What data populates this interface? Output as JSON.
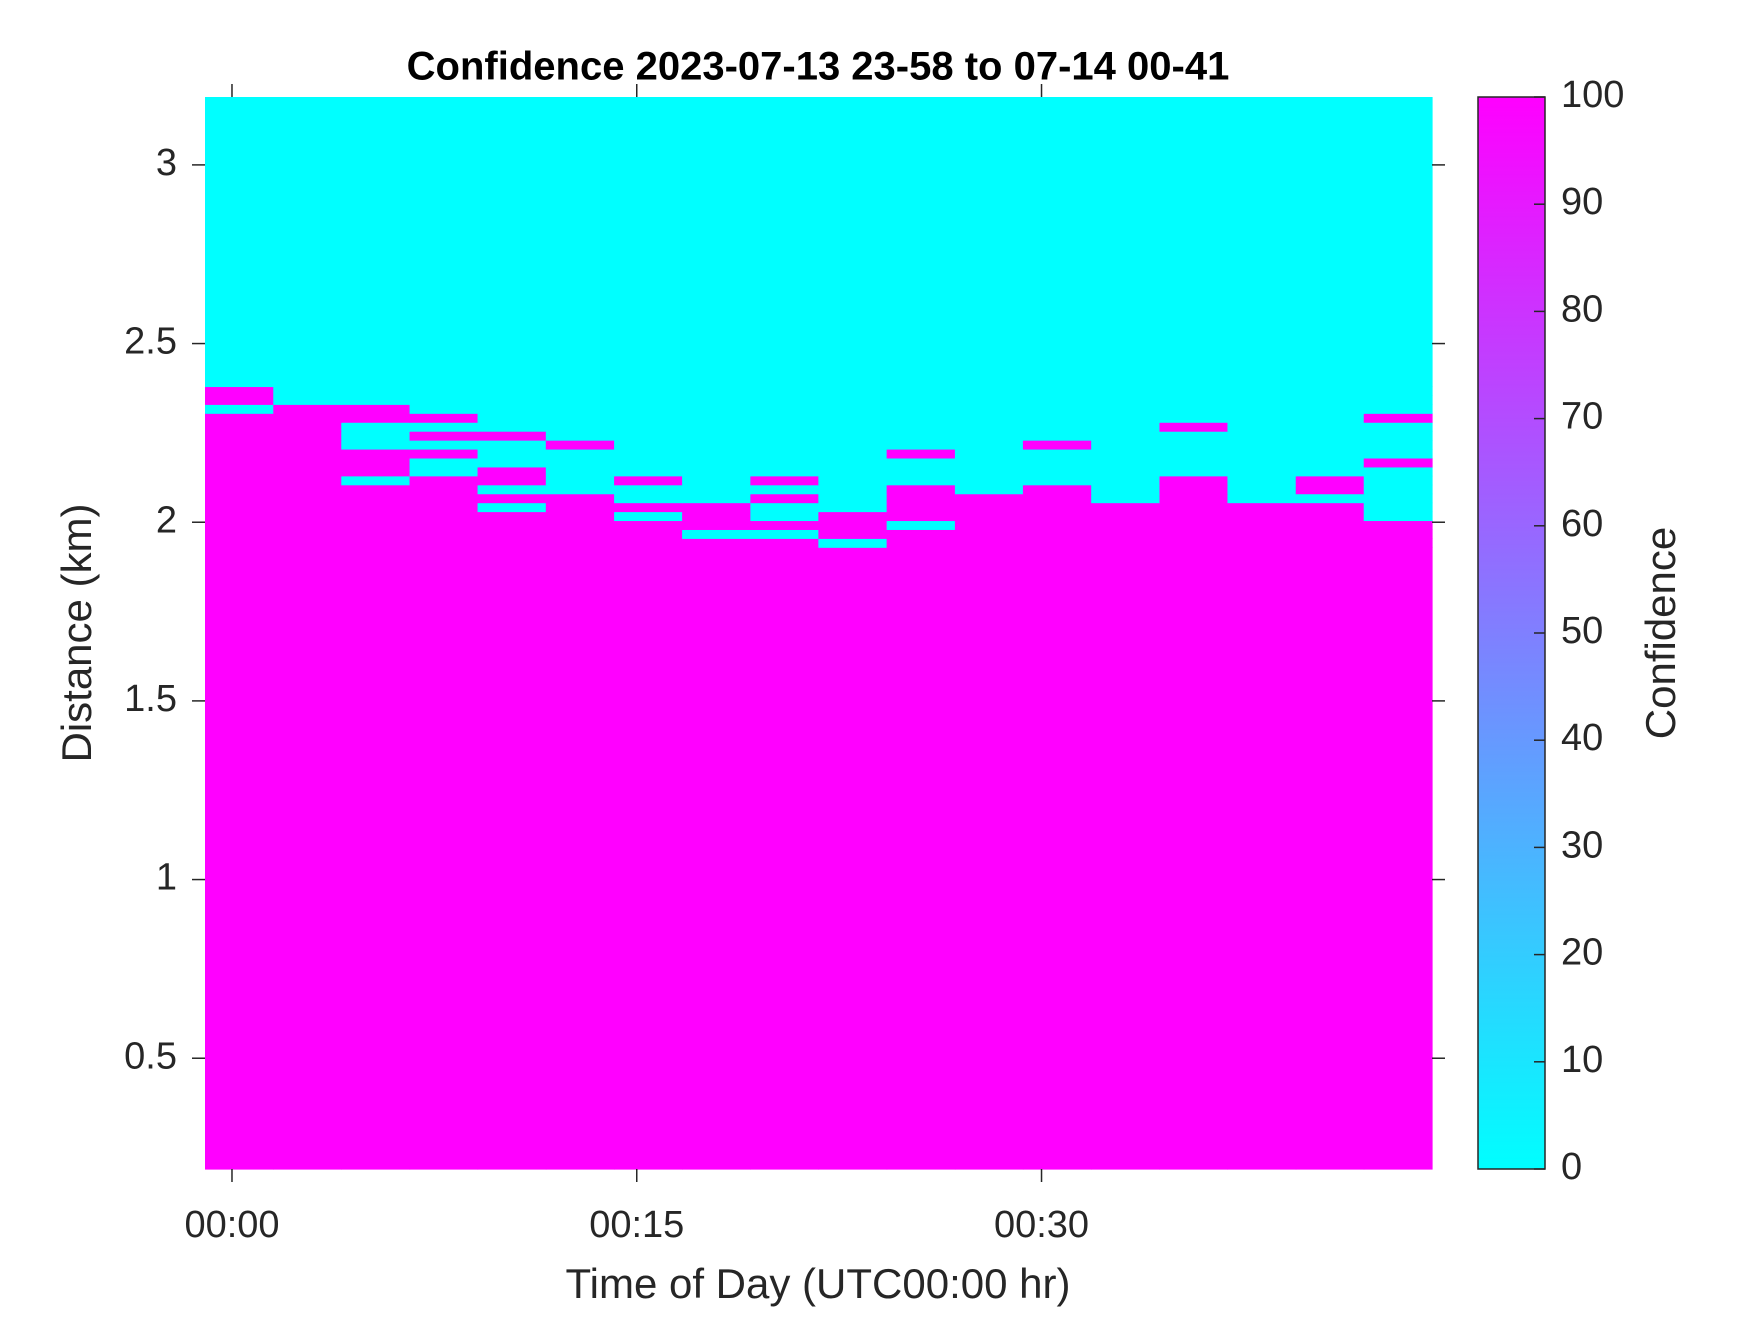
{
  "chart_data": {
    "type": "heatmap",
    "title": "Confidence 2023-07-13 23-58 to 07-14 00-41",
    "x_label": "Time of Day (UTC00:00 hr)",
    "y_label": "Distance (km)",
    "x_edges": [
      -1,
      1.53,
      4.05,
      6.58,
      9.1,
      11.63,
      14.16,
      16.68,
      19.21,
      21.73,
      24.26,
      26.79,
      29.31,
      31.84,
      34.37,
      36.89,
      39.42,
      41.94,
      44.47
    ],
    "y_edges": [
      0.19,
      1.93,
      1.955,
      1.98,
      2.005,
      2.03,
      2.055,
      2.08,
      2.105,
      2.13,
      2.155,
      2.18,
      2.205,
      2.23,
      2.255,
      2.28,
      2.305,
      2.33,
      2.355,
      2.38,
      3.19
    ],
    "xlim": [
      -1,
      44.47
    ],
    "ylim": [
      0.19,
      3.19
    ],
    "xticks": [
      {
        "value": 0,
        "label": "00:00"
      },
      {
        "value": 15,
        "label": "00:15"
      },
      {
        "value": 30,
        "label": "00:30"
      }
    ],
    "yticks": [
      0.5,
      1,
      1.5,
      2,
      2.5,
      3
    ],
    "z": [
      [
        100,
        100,
        100,
        100,
        100,
        100,
        100,
        100,
        100,
        100,
        100,
        100,
        100,
        100,
        100,
        100,
        100,
        100
      ],
      [
        100,
        100,
        100,
        100,
        100,
        100,
        100,
        100,
        100,
        0,
        100,
        100,
        100,
        100,
        100,
        100,
        100,
        100
      ],
      [
        100,
        100,
        100,
        100,
        100,
        100,
        100,
        0,
        0,
        100,
        100,
        100,
        100,
        100,
        100,
        100,
        100,
        100
      ],
      [
        100,
        100,
        100,
        100,
        100,
        100,
        100,
        100,
        100,
        100,
        0,
        100,
        100,
        100,
        100,
        100,
        100,
        100
      ],
      [
        100,
        100,
        100,
        100,
        100,
        100,
        0,
        100,
        0,
        100,
        100,
        100,
        100,
        100,
        100,
        100,
        100,
        0
      ],
      [
        100,
        100,
        100,
        100,
        0,
        100,
        100,
        100,
        0,
        0,
        100,
        100,
        100,
        100,
        100,
        100,
        100,
        0
      ],
      [
        100,
        100,
        100,
        100,
        100,
        100,
        0,
        0,
        100,
        0,
        100,
        100,
        100,
        0,
        100,
        0,
        0,
        0
      ],
      [
        100,
        100,
        100,
        100,
        0,
        0,
        0,
        0,
        0,
        0,
        100,
        0,
        100,
        0,
        100,
        0,
        100,
        0
      ],
      [
        100,
        100,
        0,
        100,
        100,
        0,
        100,
        0,
        100,
        0,
        0,
        0,
        0,
        0,
        100,
        0,
        100,
        0
      ],
      [
        100,
        100,
        100,
        0,
        100,
        0,
        0,
        0,
        0,
        0,
        0,
        0,
        0,
        0,
        0,
        0,
        0,
        0
      ],
      [
        100,
        100,
        100,
        0,
        0,
        0,
        0,
        0,
        0,
        0,
        0,
        0,
        0,
        0,
        0,
        0,
        0,
        100
      ],
      [
        100,
        100,
        100,
        100,
        0,
        0,
        0,
        0,
        0,
        0,
        100,
        0,
        0,
        0,
        0,
        0,
        0,
        0
      ],
      [
        100,
        100,
        0,
        0,
        0,
        100,
        0,
        0,
        0,
        0,
        0,
        0,
        100,
        0,
        0,
        0,
        0,
        0
      ],
      [
        100,
        100,
        0,
        100,
        100,
        0,
        0,
        0,
        0,
        0,
        0,
        0,
        0,
        0,
        0,
        0,
        0,
        0
      ],
      [
        100,
        100,
        0,
        0,
        0,
        0,
        0,
        0,
        0,
        0,
        0,
        0,
        0,
        0,
        100,
        0,
        0,
        0
      ],
      [
        100,
        100,
        100,
        100,
        0,
        0,
        0,
        0,
        0,
        0,
        0,
        0,
        0,
        0,
        0,
        0,
        0,
        100
      ],
      [
        0,
        100,
        100,
        0,
        0,
        0,
        0,
        0,
        0,
        0,
        0,
        0,
        0,
        0,
        0,
        0,
        0,
        0
      ],
      [
        100,
        0,
        0,
        0,
        0,
        0,
        0,
        0,
        0,
        0,
        0,
        0,
        0,
        0,
        0,
        0,
        0,
        0
      ],
      [
        100,
        0,
        0,
        0,
        0,
        0,
        0,
        0,
        0,
        0,
        0,
        0,
        0,
        0,
        0,
        0,
        0,
        0
      ],
      [
        0,
        0,
        0,
        0,
        0,
        0,
        0,
        0,
        0,
        0,
        0,
        0,
        0,
        0,
        0,
        0,
        0,
        0
      ]
    ],
    "colormap": [
      "#00ffff",
      "#ff00ff"
    ],
    "colorbar": {
      "label": "Confidence",
      "lim": [
        0,
        100
      ],
      "ticks": [
        0,
        10,
        20,
        30,
        40,
        50,
        60,
        70,
        80,
        90,
        100
      ]
    }
  }
}
